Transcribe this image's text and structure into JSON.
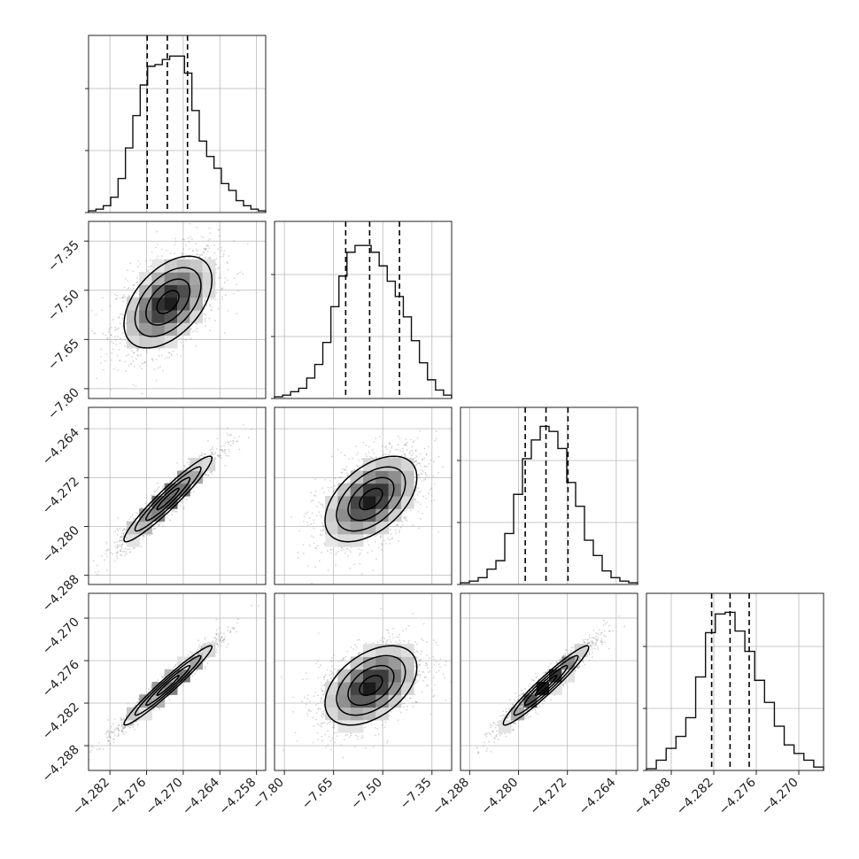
{
  "chart_data": {
    "type": "corner",
    "grid": true,
    "quantiles": [
      0.16,
      0.5,
      0.84
    ],
    "params": [
      {
        "range": [
          -4.2855,
          -4.2565
        ],
        "ticks": [
          -4.282,
          -4.276,
          -4.27,
          -4.264,
          -4.258
        ],
        "tick_labels": [
          "−4.282",
          "−4.276",
          "−4.270",
          "−4.264",
          "−4.258"
        ],
        "mean": -4.2725,
        "sd": 0.0036,
        "quantile_values": [
          -4.2759,
          -4.2726,
          -4.2693
        ]
      },
      {
        "range": [
          -7.83,
          -7.29
        ],
        "ticks": [
          -7.8,
          -7.65,
          -7.5,
          -7.35
        ],
        "tick_labels": [
          "−7.80",
          "−7.65",
          "−7.50",
          "−7.35"
        ],
        "mean": -7.536,
        "sd": 0.07,
        "quantile_values": [
          -7.613,
          -7.54,
          -7.449
        ]
      },
      {
        "range": [
          -4.2895,
          -4.2605
        ],
        "ticks": [
          -4.288,
          -4.28,
          -4.272,
          -4.264
        ],
        "tick_labels": [
          "−4.288",
          "−4.280",
          "−4.272",
          "−4.264"
        ],
        "mean": -4.2755,
        "sd": 0.0035,
        "quantile_values": [
          -4.2789,
          -4.2755,
          -4.2719
        ]
      },
      {
        "range": [
          -4.2915,
          -4.2665
        ],
        "ticks": [
          -4.288,
          -4.282,
          -4.276,
          -4.27
        ],
        "tick_labels": [
          "−4.288",
          "−4.282",
          "−4.276",
          "−4.270"
        ],
        "mean": -4.2795,
        "sd": 0.0028,
        "quantile_values": [
          -4.2823,
          -4.2797,
          -4.277
        ]
      }
    ],
    "histograms": [
      {
        "bin_values": [
          0.01,
          0.02,
          0.04,
          0.09,
          0.2,
          0.38,
          0.57,
          0.75,
          0.86,
          0.87,
          0.9,
          0.92,
          0.92,
          0.82,
          0.6,
          0.42,
          0.33,
          0.26,
          0.17,
          0.13,
          0.07,
          0.04,
          0.02,
          0.01
        ]
      },
      {
        "bin_values": [
          0.01,
          0.02,
          0.04,
          0.06,
          0.12,
          0.2,
          0.33,
          0.54,
          0.72,
          0.86,
          0.9,
          0.9,
          0.86,
          0.78,
          0.69,
          0.6,
          0.48,
          0.34,
          0.21,
          0.11,
          0.05,
          0.02
        ]
      },
      {
        "bin_values": [
          0.01,
          0.02,
          0.04,
          0.09,
          0.14,
          0.3,
          0.53,
          0.74,
          0.85,
          0.93,
          0.9,
          0.8,
          0.6,
          0.46,
          0.26,
          0.17,
          0.08,
          0.04,
          0.02,
          0.01
        ]
      },
      {
        "bin_values": [
          0.01,
          0.06,
          0.13,
          0.2,
          0.31,
          0.55,
          0.81,
          0.92,
          0.93,
          0.82,
          0.7,
          0.53,
          0.4,
          0.26,
          0.15,
          0.1,
          0.06,
          0.02
        ]
      }
    ],
    "pairs": [
      {
        "row": 1,
        "col": 0,
        "correlation": 0.48
      },
      {
        "row": 2,
        "col": 0,
        "correlation": 0.95
      },
      {
        "row": 2,
        "col": 1,
        "correlation": 0.5
      },
      {
        "row": 3,
        "col": 0,
        "correlation": 0.97
      },
      {
        "row": 3,
        "col": 1,
        "correlation": 0.45
      },
      {
        "row": 3,
        "col": 2,
        "correlation": 0.96
      }
    ],
    "contour_levels_sigma": [
      0.5,
      1.0,
      1.5,
      2.0
    ]
  }
}
